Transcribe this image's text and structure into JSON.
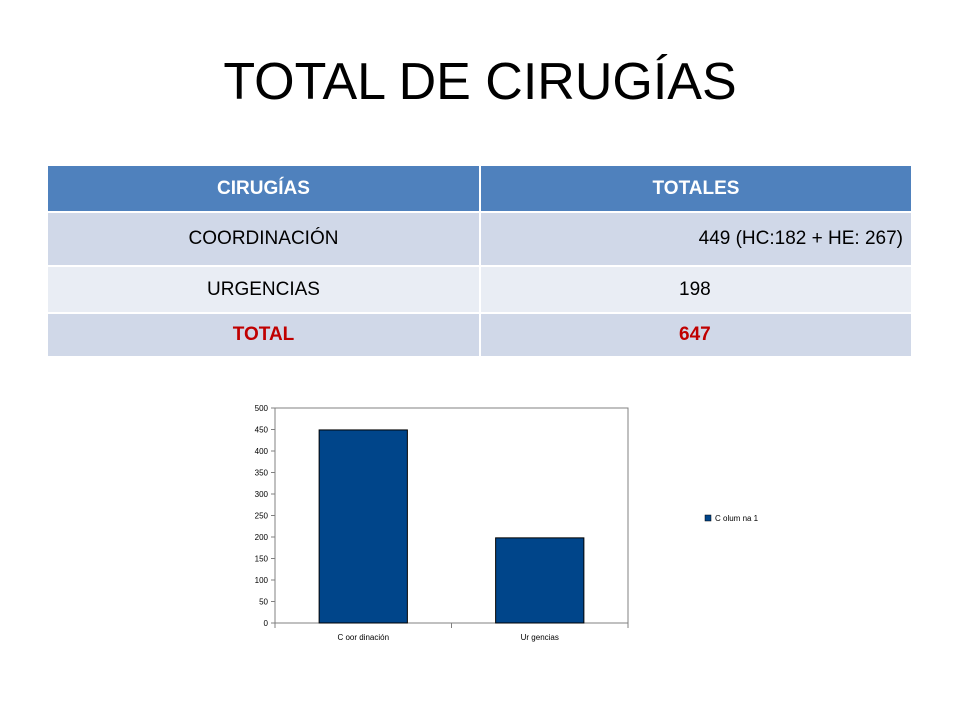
{
  "slide": {
    "title": "TOTAL DE CIRUGÍAS"
  },
  "table": {
    "headers": [
      "CIRUGÍAS",
      "TOTALES"
    ],
    "rows": [
      {
        "name": "COORDINACIÓN",
        "total": "449  (HC:182 + HE: 267)"
      },
      {
        "name": "URGENCIAS",
        "total": "198"
      },
      {
        "name": "TOTAL",
        "total": "647"
      }
    ]
  },
  "chart_data": {
    "type": "bar",
    "categories": [
      "C oor dinación",
      "Ur gencias"
    ],
    "series": [
      {
        "name": "C olum na 1",
        "values": [
          449,
          198
        ]
      }
    ],
    "yticks": [
      "0",
      "50",
      "100",
      "150",
      "200",
      "250",
      "300",
      "350",
      "400",
      "450",
      "500"
    ],
    "ylim": [
      0,
      500
    ],
    "grid": false,
    "legend": "right",
    "colors": {
      "bar": "#00458a",
      "header": "#4f81bd",
      "total_text": "#c00000"
    }
  }
}
